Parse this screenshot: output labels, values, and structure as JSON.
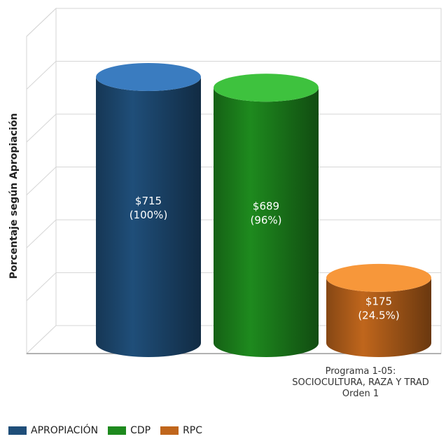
{
  "chart_data": {
    "type": "bar",
    "style": "3d-cylinder",
    "categories": [
      "Programa 1-05: SOCIOCULTURA, RAZA Y TRAD Orden 1"
    ],
    "category_label_lines": [
      "Programa 1-05:",
      "SOCIOCULTURA, RAZA Y TRAD",
      "Orden 1"
    ],
    "ylabel": "Porcentaje según Apropiación",
    "ylim": [
      0,
      100
    ],
    "grid": true,
    "legend_position": "bottom-left",
    "series": [
      {
        "name": "APROPIACIÓN",
        "value_label": "$715",
        "percent_label": "(100%)",
        "percent": 100,
        "color": "#1f4e79",
        "top_color": "#3a7cc0"
      },
      {
        "name": "CDP",
        "value_label": "$689",
        "percent_label": "(96%)",
        "percent": 96,
        "color": "#1e8a1e",
        "top_color": "#3ec23e"
      },
      {
        "name": "RPC",
        "value_label": "$175",
        "percent_label": "(24.5%)",
        "percent": 24.5,
        "color": "#c0661c",
        "top_color": "#f7973a"
      }
    ]
  }
}
